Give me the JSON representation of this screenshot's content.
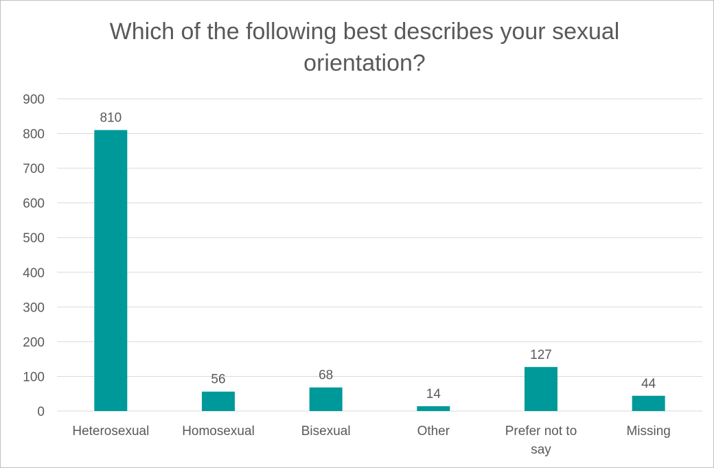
{
  "chart_data": {
    "type": "bar",
    "title_lines": [
      "Which of the following best describes your sexual",
      "orientation?"
    ],
    "categories": [
      [
        "Heterosexual"
      ],
      [
        "Homosexual"
      ],
      [
        "Bisexual"
      ],
      [
        "Other"
      ],
      [
        "Prefer not to",
        "say"
      ],
      [
        "Missing"
      ]
    ],
    "values": [
      810,
      56,
      68,
      14,
      127,
      44
    ],
    "ylim": [
      0,
      900
    ],
    "yticks": [
      0,
      100,
      200,
      300,
      400,
      500,
      600,
      700,
      800,
      900
    ],
    "grid": true,
    "legend": "none",
    "bar_color": "#009999",
    "gridline_color": "#d9d9d9",
    "text_color": "#595959"
  }
}
